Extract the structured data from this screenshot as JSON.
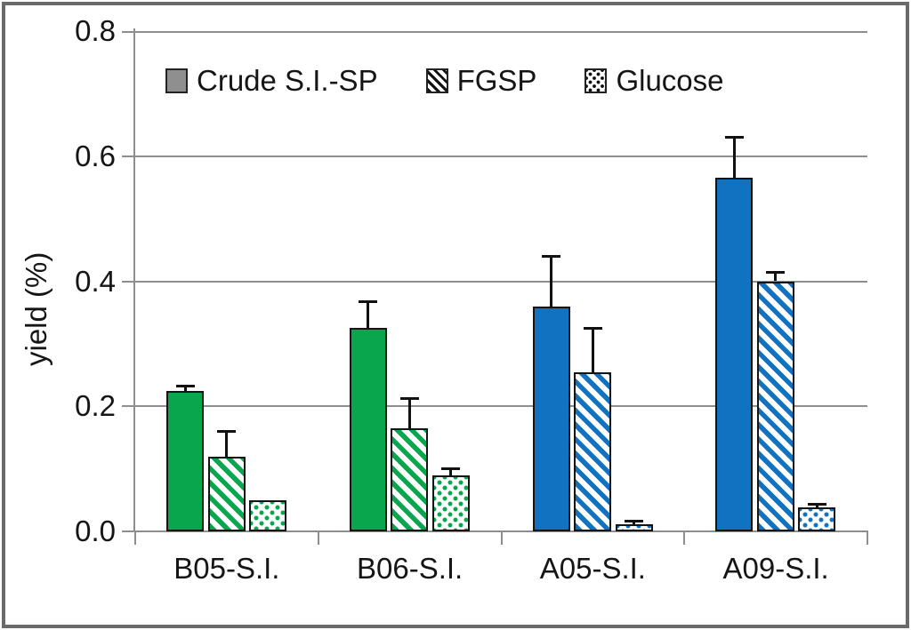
{
  "chart_data": {
    "type": "bar",
    "title": "",
    "xlabel": "",
    "ylabel": "yield (%)",
    "ylim": [
      0,
      0.8
    ],
    "yticks": [
      0.0,
      0.2,
      0.4,
      0.6,
      0.8
    ],
    "ytick_labels": [
      "0.0",
      "0.2",
      "0.4",
      "0.6",
      "0.8"
    ],
    "grid": "horizontal",
    "legend_position": "top-inside",
    "categories": [
      "B05-S.I.",
      "B06-S.I.",
      "A05-S.I.",
      "A09-S.I."
    ],
    "series": [
      {
        "name": "Crude S.I.-SP",
        "pattern": "solid",
        "values": [
          0.225,
          0.325,
          0.36,
          0.565
        ],
        "errors_plus": [
          0.008,
          0.043,
          0.08,
          0.065
        ]
      },
      {
        "name": "FGSP",
        "pattern": "diagonal-hatch",
        "values": [
          0.12,
          0.165,
          0.255,
          0.4
        ],
        "errors_plus": [
          0.04,
          0.047,
          0.07,
          0.014
        ]
      },
      {
        "name": "Glucose",
        "pattern": "dots",
        "values": [
          0.05,
          0.09,
          0.012,
          0.038
        ],
        "errors_plus": [
          0,
          0.01,
          0.005,
          0.006
        ]
      }
    ],
    "group_colors": [
      "#0aa64e",
      "#0aa64e",
      "#1172c2",
      "#1172c2"
    ],
    "colors": {
      "green_bars": "#0aa64e",
      "blue_bars": "#1172c2",
      "gridline": "#8e8e8e",
      "error_bar": "#111111",
      "legend_swatch_gray": "#8f8f8f",
      "frame_border": "#6a6a6a",
      "text": "#151515"
    }
  }
}
